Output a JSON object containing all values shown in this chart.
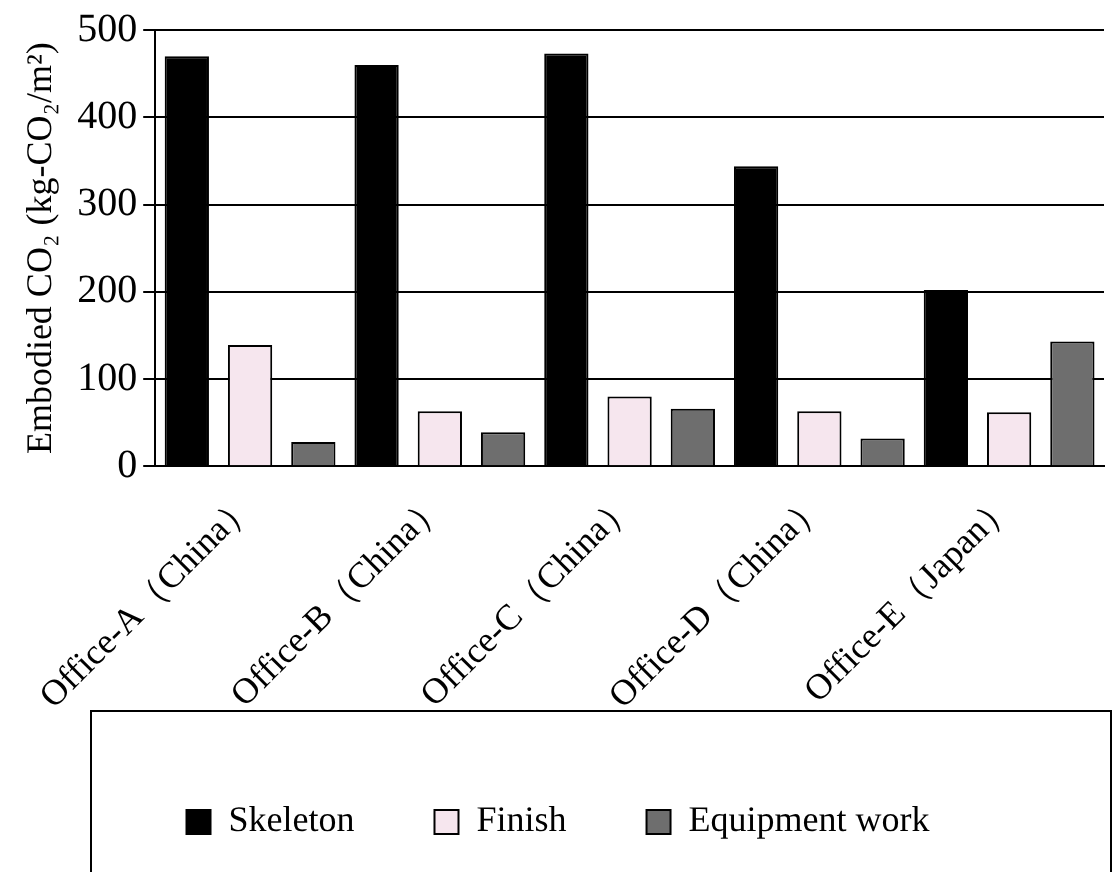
{
  "chart_data": {
    "type": "bar",
    "ylabel": "Embodied CO₂ (kg-CO₂/m²)",
    "categories": [
      "Office-A（China）",
      "Office-B（China）",
      "Office-C（China）",
      "Office-D（China）",
      "Office-E（Japan）"
    ],
    "series": [
      {
        "name": "Skeleton",
        "color": "#000000",
        "values": [
          470,
          460,
          473,
          344,
          202
        ]
      },
      {
        "name": "Finish",
        "color": "#f6e6ee",
        "values": [
          139,
          63,
          80,
          63,
          62
        ]
      },
      {
        "name": "Equipment work",
        "color": "#6e6e6e",
        "values": [
          28,
          39,
          66,
          32,
          143
        ]
      }
    ],
    "ylim": [
      0,
      500
    ],
    "yticks": [
      0,
      100,
      200,
      300,
      400,
      500
    ],
    "grid": "y",
    "legend": "bottom"
  }
}
